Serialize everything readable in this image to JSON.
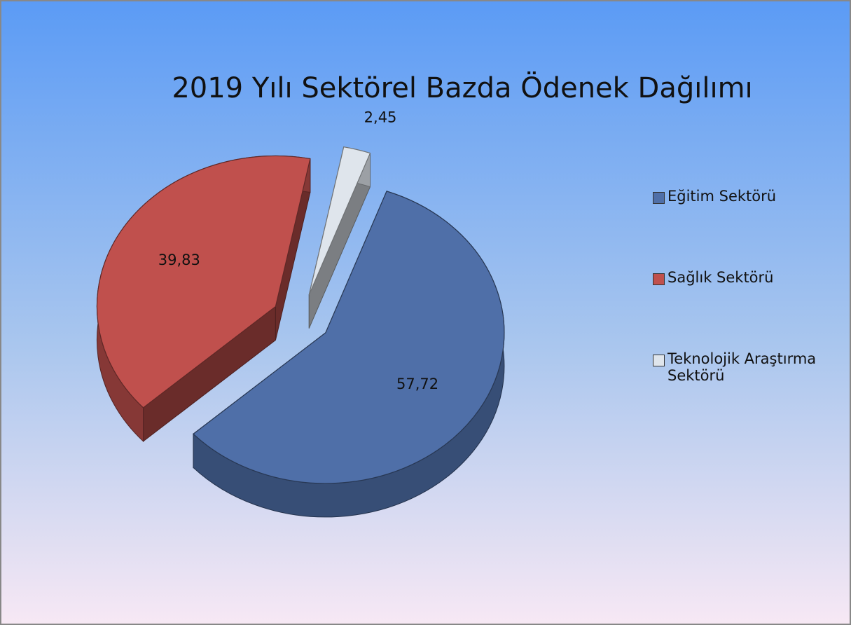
{
  "chart_data": {
    "type": "pie",
    "title": "2019 Yılı Sektörel Bazda Ödenek Dağılımı",
    "categories": [
      "Eğitim Sektörü",
      "Sağlık Sektörü",
      "Teknolojik Araştırma Sektörü"
    ],
    "values": [
      57.72,
      39.83,
      2.45
    ],
    "value_labels": [
      "57,72",
      "39,83",
      "2,45"
    ],
    "colors": [
      "#4f6fa8",
      "#c0504d",
      "#dfe5ec"
    ],
    "legend": "right"
  }
}
